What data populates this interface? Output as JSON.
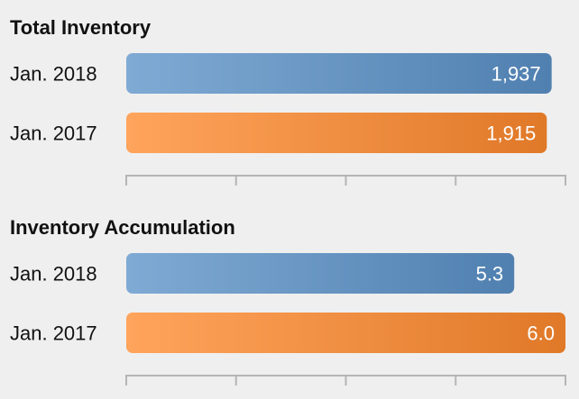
{
  "chart_data": [
    {
      "type": "bar",
      "orientation": "horizontal",
      "title": "Total Inventory",
      "categories": [
        "Jan. 2018",
        "Jan. 2017"
      ],
      "values": [
        1937,
        1915
      ],
      "value_labels": [
        "1,937",
        "1,915"
      ],
      "bar_colors": [
        "#5b92c8",
        "#ff8a2e"
      ],
      "xlim": [
        0,
        2000
      ],
      "ticks": 5,
      "grid": false,
      "xlabel": "",
      "ylabel": ""
    },
    {
      "type": "bar",
      "orientation": "horizontal",
      "title": "Inventory Accumulation",
      "categories": [
        "Jan. 2018",
        "Jan. 2017"
      ],
      "values": [
        5.3,
        6.0
      ],
      "value_labels": [
        "5.3",
        "6.0"
      ],
      "bar_colors": [
        "#5b92c8",
        "#ff8a2e"
      ],
      "xlim": [
        0,
        6.0
      ],
      "ticks": 5,
      "grid": false,
      "xlabel": "",
      "ylabel": ""
    }
  ]
}
